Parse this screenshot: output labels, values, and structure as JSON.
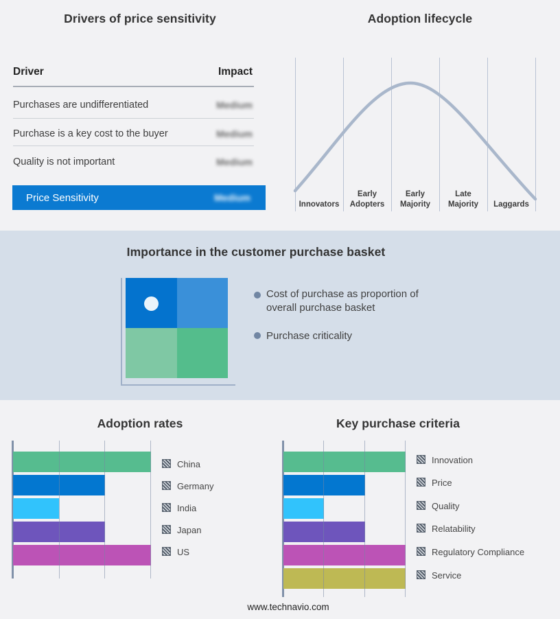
{
  "chart_data": [
    {
      "type": "table",
      "title": "Drivers of price sensitivity",
      "columns": [
        "Driver",
        "Impact"
      ],
      "rows": [
        [
          "Purchases are undifferentiated",
          "Medium"
        ],
        [
          "Purchase is a key cost to the buyer",
          "Medium"
        ],
        [
          "Quality is not important",
          "Medium"
        ],
        [
          "Price Sensitivity",
          "Medium"
        ]
      ],
      "layout_hints": {
        "impact_values_blurred": true,
        "last_row_highlight_color": "#0B7AD1"
      }
    },
    {
      "type": "line",
      "title": "Adoption lifecycle",
      "categories": [
        "Innovators",
        "Early Adopters",
        "Early Majority",
        "Late Majority",
        "Laggards"
      ],
      "description": "Bell-shaped adoption curve peaking over the Early Majority stage",
      "curve_color": "#A9B7CB",
      "grid": "vertical stage separators, no y axis"
    },
    {
      "type": "bar",
      "title": "Adoption rates",
      "orientation": "horizontal",
      "categories": [
        "China",
        "Germany",
        "India",
        "Japan",
        "US"
      ],
      "values": [
        3,
        2,
        1,
        2,
        3
      ],
      "values_pct_of_axis": [
        100,
        66.7,
        33.3,
        66.7,
        100
      ],
      "xlim": [
        0,
        3
      ],
      "xlabel": "",
      "ylabel": "",
      "colors": [
        "#56BC8F",
        "#0377D0",
        "#31C3FC",
        "#6E55BC",
        "#BC53B6"
      ],
      "grid": "vertical gridlines at thirds",
      "legend_position": "right"
    },
    {
      "type": "bar",
      "title": "Key purchase criteria",
      "orientation": "horizontal",
      "categories": [
        "Innovation",
        "Price",
        "Quality",
        "Relatability",
        "Regulatory Compliance",
        "Service"
      ],
      "values": [
        3,
        2,
        1,
        2,
        3,
        3
      ],
      "values_pct_of_axis": [
        100,
        66.7,
        33.3,
        66.7,
        100,
        100
      ],
      "xlim": [
        0,
        3
      ],
      "xlabel": "",
      "ylabel": "",
      "colors": [
        "#56BC8F",
        "#0377D0",
        "#31C3FC",
        "#6E55BC",
        "#BC53B6",
        "#BEB954"
      ],
      "grid": "vertical gridlines at thirds",
      "legend_position": "right"
    }
  ],
  "drivers": {
    "title": "Drivers of price sensitivity",
    "header": {
      "driver": "Driver",
      "impact": "Impact"
    },
    "rows": [
      {
        "driver": "Purchases are undifferentiated",
        "impact": "Medium"
      },
      {
        "driver": "Purchase is a key cost to the buyer",
        "impact": "Medium"
      },
      {
        "driver": "Quality is not important",
        "impact": "Medium"
      }
    ],
    "highlight": {
      "label": "Price Sensitivity",
      "impact": "Medium",
      "bg": "#0B7AD1"
    }
  },
  "lifecycle": {
    "title": "Adoption lifecycle"
  },
  "basket": {
    "title": "Importance in the customer purchase basket",
    "bullets": [
      "Cost of purchase as proportion of overall purchase basket",
      "Purchase criticality"
    ],
    "band_bg": "#D5DEE9",
    "quadrant_colors": {
      "top_left": "#0473CE",
      "top_right": "#3A90D9",
      "bottom_left": "#7FC8A4",
      "bottom_right": "#54BD8C"
    },
    "dot_color": "#EAF4FB"
  },
  "footer": "www.technavio.com"
}
